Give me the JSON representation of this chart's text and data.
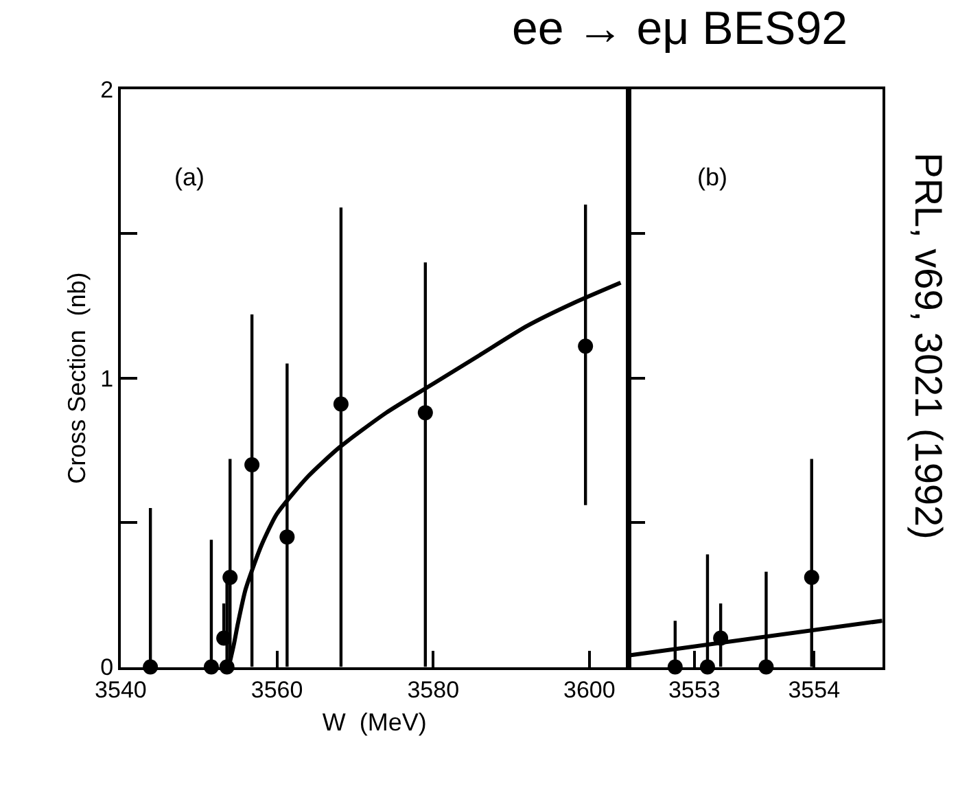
{
  "chart_data": [
    {
      "type": "scatter",
      "title": "ee → eμ BES92",
      "xlabel": "W  (MeV)",
      "ylabel": "Cross Section  (nb)",
      "annotations": [
        "(a)",
        "PRL, v69, 3021 (1992)"
      ],
      "xlim": [
        3540,
        3605
      ],
      "xticks": [
        3540,
        3560,
        3580,
        3600
      ],
      "ylim": [
        0,
        2
      ],
      "yticks": [
        0,
        {
          "value": 0.5,
          "label": null
        },
        1,
        {
          "value": 1.5,
          "label": null
        },
        2
      ],
      "series": [
        {
          "marker": "circle",
          "color": "#000000",
          "x": [
            3543.8,
            3551.6,
            3553.2,
            3553.6,
            3554.0,
            3556.8,
            3561.3,
            3568.2,
            3579.0,
            3599.5
          ],
          "values": [
            0,
            0,
            0.1,
            0,
            0.31,
            0.7,
            0.45,
            0.91,
            0.88,
            1.11
          ],
          "errors": [
            [
              0,
              0.55
            ],
            [
              0,
              0.44
            ],
            [
              0.1,
              0.22
            ],
            [
              0,
              0.33
            ],
            [
              0,
              0.72
            ],
            [
              0,
              1.22
            ],
            [
              0,
              1.05
            ],
            [
              0,
              1.59
            ],
            [
              0,
              1.4
            ],
            [
              0.56,
              1.6
            ]
          ]
        },
        {
          "type": "line",
          "marker": "none",
          "line_style": "solid",
          "color": "#000000",
          "x": [
            3554.0,
            3554.5,
            3555,
            3556,
            3558,
            3560,
            3564,
            3568,
            3574,
            3580,
            3586,
            3592,
            3598,
            3604
          ],
          "values": [
            0.02,
            0.08,
            0.15,
            0.27,
            0.42,
            0.53,
            0.66,
            0.76,
            0.88,
            0.98,
            1.08,
            1.18,
            1.26,
            1.33
          ]
        }
      ]
    },
    {
      "type": "scatter",
      "annotations": [
        "(b)"
      ],
      "tick_labels": "x",
      "xlim": [
        3552.45,
        3554.57
      ],
      "xticks": [
        3553,
        3554
      ],
      "ylim": [
        0,
        2
      ],
      "yticks": [
        0,
        0.5,
        1,
        1.5,
        2
      ],
      "series": [
        {
          "marker": "circle",
          "color": "#000000",
          "x": [
            3552.84,
            3553.11,
            3553.22,
            3553.6,
            3553.98
          ],
          "values": [
            0,
            0,
            0.1,
            0,
            0.31
          ],
          "errors": [
            [
              0,
              0.16
            ],
            [
              0,
              0.39
            ],
            [
              0,
              0.22
            ],
            [
              0,
              0.33
            ],
            [
              0,
              0.72
            ]
          ]
        },
        {
          "type": "line",
          "marker": "none",
          "line_style": "solid",
          "color": "#000000",
          "x": [
            3552.45,
            3554.57
          ],
          "values": [
            0.04,
            0.16
          ]
        }
      ]
    }
  ]
}
